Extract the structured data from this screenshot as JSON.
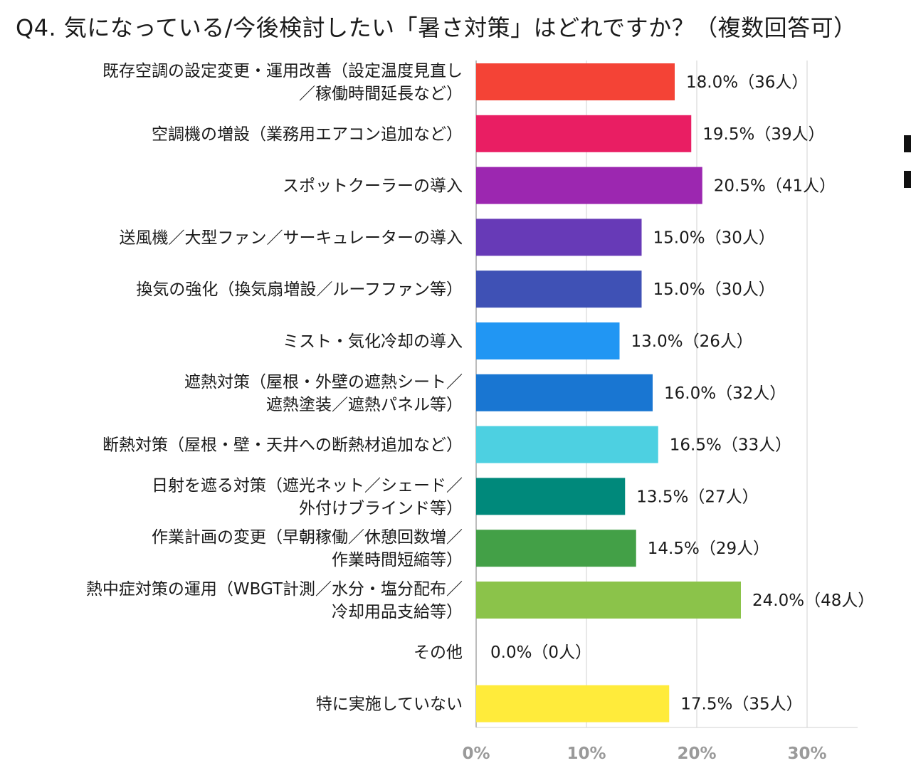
{
  "title": "Q4. 気になっている/今後検討したい「暑さ対策」はどれですか？（複数回答可）",
  "chart_data": {
    "type": "bar",
    "orientation": "horizontal",
    "title": "Q4. 気になっている/今後検討したい「暑さ対策」はどれですか？（複数回答可）",
    "xlim": [
      0,
      35
    ],
    "xticks": [
      "0%",
      "10%",
      "20%",
      "30%"
    ],
    "xtick_values": [
      0,
      10,
      20,
      30
    ],
    "grid": "vertical",
    "categories": [
      [
        "既存空調の設定変更・運用改善（設定温度見直し",
        "／稼働時間延長など）"
      ],
      [
        "空調機の増設（業務用エアコン追加など）"
      ],
      [
        "スポットクーラーの導入"
      ],
      [
        "送風機／大型ファン／サーキュレーターの導入"
      ],
      [
        "換気の強化（換気扇増設／ルーフファン等）"
      ],
      [
        "ミスト・気化冷却の導入"
      ],
      [
        "遮熱対策（屋根・外壁の遮熱シート／",
        "遮熱塗装／遮熱パネル等）"
      ],
      [
        "断熱対策（屋根・壁・天井への断熱材追加など）"
      ],
      [
        "日射を遮る対策（遮光ネット／シェード／",
        "外付けブラインド等）"
      ],
      [
        "作業計画の変更（早朝稼働／休憩回数増／",
        "作業時間短縮等）"
      ],
      [
        "熱中症対策の運用（WBGT計測／水分・塩分配布／",
        "冷却用品支給等）"
      ],
      [
        "その他"
      ],
      [
        "特に実施していない"
      ]
    ],
    "values": [
      18.0,
      19.5,
      20.5,
      15.0,
      15.0,
      13.0,
      16.0,
      16.5,
      13.5,
      14.5,
      24.0,
      0.0,
      17.5
    ],
    "value_labels": [
      "18.0%（36人）",
      "19.5%（39人）",
      "20.5%（41人）",
      "15.0%（30人）",
      "15.0%（30人）",
      "13.0%（26人）",
      "16.0%（32人）",
      "16.5%（33人）",
      "13.5%（27人）",
      "14.5%（29人）",
      "24.0%（48人）",
      "0.0%（0人）",
      "17.5%（35人）"
    ],
    "colors": [
      "#f44336",
      "#e91e63",
      "#9c27b0",
      "#673ab7",
      "#3f51b5",
      "#2196f3",
      "#1976d2",
      "#4dd0e1",
      "#00897b",
      "#43a047",
      "#8bc34a",
      "#9e9e9e",
      "#ffeb3b"
    ],
    "gridline_color": "#d0d0d0"
  }
}
